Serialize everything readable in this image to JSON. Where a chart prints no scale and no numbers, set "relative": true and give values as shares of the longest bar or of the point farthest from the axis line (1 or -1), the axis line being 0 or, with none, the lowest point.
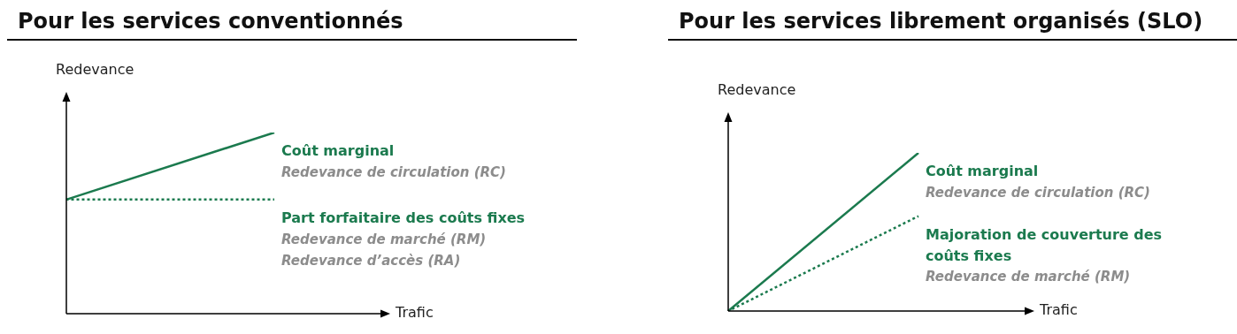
{
  "chart_data": [
    {
      "type": "line",
      "title": "Pour les services conventionnés",
      "xlabel": "Trafic",
      "ylabel": "Redevance",
      "relative": true,
      "categories": [
        null,
        null
      ],
      "marker": "none",
      "series": [
        {
          "name": "Coût marginal",
          "color": "#1b7a4e",
          "values": [
            0.63,
            1
          ],
          "line_style": "solid"
        },
        {
          "name": "Part forfaitaire des coûts fixes",
          "color": "#1b7a4e",
          "values": [
            0.63,
            0.63
          ],
          "line_style": "dotted"
        }
      ],
      "annotations": [
        "Redevance de circulation (RC)",
        "Redevance de marché (RM)",
        "Redevance d’accès (RA)"
      ]
    },
    {
      "type": "line",
      "title": "Pour les services librement organisés (SLO)",
      "xlabel": "Trafic",
      "ylabel": "Redevance",
      "relative": true,
      "categories": [
        null,
        null
      ],
      "marker": "none",
      "series": [
        {
          "name": "Coût marginal",
          "color": "#1b7a4e",
          "values": [
            0,
            1
          ],
          "line_style": "solid"
        },
        {
          "name": "Majoration de couverture des coûts fixes",
          "color": "#1b7a4e",
          "values": [
            0,
            0.6
          ],
          "line_style": "dotted"
        }
      ],
      "annotations": [
        "Redevance de circulation (RC)",
        "Redevance de marché (RM)"
      ]
    }
  ]
}
